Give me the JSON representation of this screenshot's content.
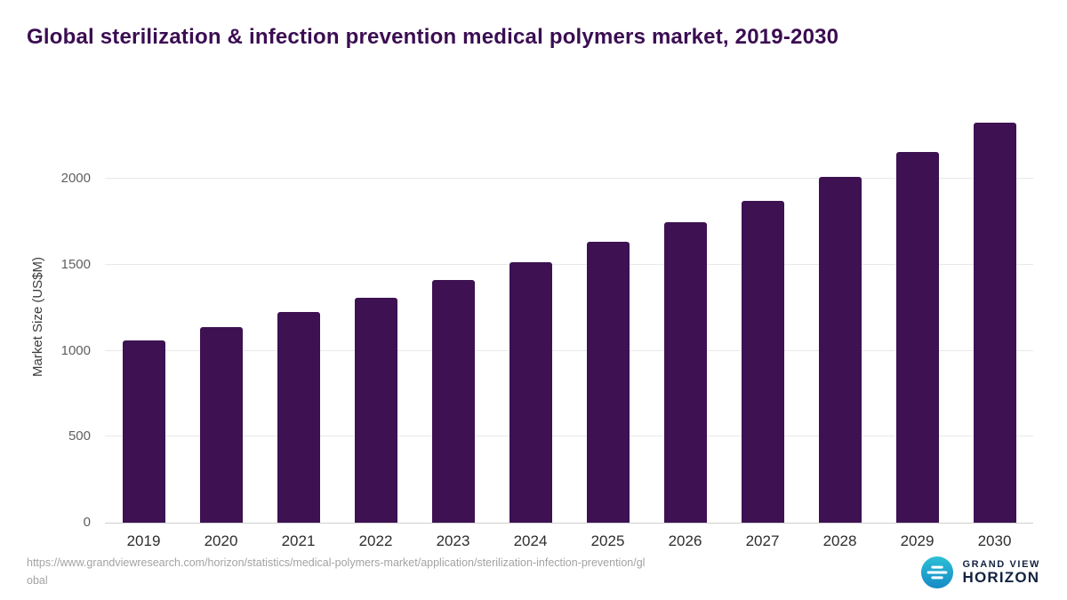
{
  "title": "Global sterilization & infection prevention medical polymers market, 2019-2030",
  "chart_data": {
    "type": "bar",
    "categories": [
      "2019",
      "2020",
      "2021",
      "2022",
      "2023",
      "2024",
      "2025",
      "2026",
      "2027",
      "2028",
      "2029",
      "2030"
    ],
    "values": [
      1060,
      1140,
      1225,
      1310,
      1410,
      1515,
      1635,
      1750,
      1870,
      2010,
      2155,
      2330
    ],
    "title": "Global sterilization & infection prevention medical polymers market, 2019-2030",
    "xlabel": "",
    "ylabel": "Market Size (US$M)",
    "yticks": [
      0,
      500,
      1000,
      1500,
      2000
    ],
    "ylim": [
      0,
      2400
    ],
    "grid": true,
    "legend": "none"
  },
  "colors": {
    "bar_color": "#3d1152",
    "title_color": "#3b0d52",
    "logo_teal_1": "#2cc0d5",
    "logo_teal_2": "#1689c6",
    "logo_navy": "#13233f"
  },
  "footer": {
    "source_url": "https://www.grandviewresearch.com/horizon/statistics/medical-polymers-market/application/sterilization-infection-prevention/global",
    "logo_line1": "GRAND VIEW",
    "logo_line2": "HORIZON"
  }
}
